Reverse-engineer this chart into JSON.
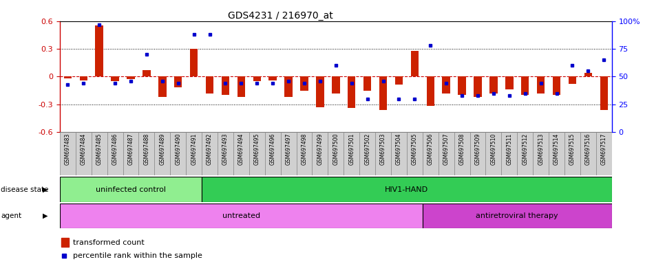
{
  "title": "GDS4231 / 216970_at",
  "samples": [
    "GSM697483",
    "GSM697484",
    "GSM697485",
    "GSM697486",
    "GSM697487",
    "GSM697488",
    "GSM697489",
    "GSM697490",
    "GSM697491",
    "GSM697492",
    "GSM697493",
    "GSM697494",
    "GSM697495",
    "GSM697496",
    "GSM697497",
    "GSM697498",
    "GSM697499",
    "GSM697500",
    "GSM697501",
    "GSM697502",
    "GSM697503",
    "GSM697504",
    "GSM697505",
    "GSM697506",
    "GSM697507",
    "GSM697508",
    "GSM697509",
    "GSM697510",
    "GSM697511",
    "GSM697512",
    "GSM697513",
    "GSM697514",
    "GSM697515",
    "GSM697516",
    "GSM697517"
  ],
  "transformed_count": [
    -0.02,
    -0.04,
    0.55,
    -0.05,
    -0.03,
    0.07,
    -0.22,
    -0.12,
    0.3,
    -0.18,
    -0.2,
    -0.22,
    -0.05,
    -0.04,
    -0.22,
    -0.15,
    -0.33,
    -0.18,
    -0.34,
    -0.15,
    -0.36,
    -0.09,
    0.28,
    -0.32,
    -0.18,
    -0.2,
    -0.22,
    -0.18,
    -0.14,
    -0.2,
    -0.18,
    -0.2,
    -0.08,
    0.04,
    -0.36
  ],
  "percentile_rank": [
    43,
    44,
    97,
    44,
    46,
    70,
    46,
    44,
    88,
    88,
    44,
    44,
    44,
    44,
    46,
    44,
    46,
    60,
    44,
    30,
    46,
    30,
    30,
    78,
    44,
    33,
    33,
    35,
    33,
    35,
    44,
    35,
    60,
    55,
    65
  ],
  "disease_state_groups": [
    {
      "label": "uninfected control",
      "start": 0,
      "end": 9,
      "color": "#90EE90"
    },
    {
      "label": "HIV1-HAND",
      "start": 9,
      "end": 35,
      "color": "#33CC55"
    }
  ],
  "agent_groups": [
    {
      "label": "untreated",
      "start": 0,
      "end": 23,
      "color": "#EE82EE"
    },
    {
      "label": "antiretroviral therapy",
      "start": 23,
      "end": 35,
      "color": "#CC44CC"
    }
  ],
  "bar_color": "#CC2200",
  "dot_color": "#0000CC",
  "ylim": [
    -0.6,
    0.6
  ],
  "yticks_left": [
    -0.6,
    -0.3,
    0.0,
    0.3,
    0.6
  ],
  "ytick_labels_left": [
    "-0.6",
    "-0.3",
    "0",
    "0.3",
    "0.6"
  ],
  "right_ytick_positions": [
    0.0,
    0.25,
    0.5,
    0.75,
    1.0
  ],
  "right_ytick_labels": [
    "0",
    "25",
    "50",
    "75",
    "100%"
  ],
  "hline_color": "#CC0000",
  "dotted_color": "black",
  "xtick_bg_color": "#D0D0D0",
  "plot_bg": "white"
}
